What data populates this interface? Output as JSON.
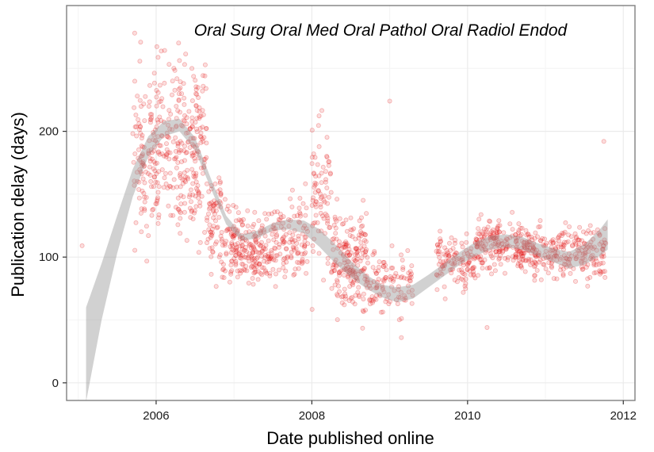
{
  "chart_data": {
    "type": "scatter",
    "title": "Oral Surg Oral Med Oral Pathol Oral Radiol Endod",
    "xlabel": "Date published online",
    "ylabel": "Publication delay (days)",
    "xlim": [
      2004.85,
      2012.15
    ],
    "ylim": [
      -14,
      300
    ],
    "x_ticks": [
      2006,
      2008,
      2010,
      2012
    ],
    "x_tick_labels": [
      "2006",
      "2008",
      "2010",
      "2012"
    ],
    "y_ticks": [
      0,
      100,
      200
    ],
    "y_tick_labels": [
      "0",
      "100",
      "200"
    ],
    "grid": true,
    "legend": "none",
    "point_color": "#e31a1c",
    "point_alpha": 0.15,
    "band_color": "#999999",
    "smooth_band": {
      "x": [
        2005.1,
        2005.3,
        2005.5,
        2005.7,
        2005.9,
        2006.1,
        2006.3,
        2006.5,
        2006.7,
        2006.9,
        2007.1,
        2007.3,
        2007.5,
        2007.7,
        2007.9,
        2008.1,
        2008.3,
        2008.5,
        2008.7,
        2008.9,
        2009.1,
        2009.3,
        2009.5,
        2009.7,
        2009.9,
        2010.1,
        2010.3,
        2010.5,
        2010.7,
        2010.9,
        2011.1,
        2011.3,
        2011.5,
        2011.7,
        2011.8
      ],
      "lower": [
        -15,
        50,
        103,
        148,
        180,
        196,
        200,
        185,
        155,
        126,
        113,
        115,
        121,
        122,
        119,
        108,
        95,
        84,
        75,
        68,
        64,
        67,
        76,
        85,
        94,
        101,
        106,
        108,
        106,
        101,
        96,
        91,
        94,
        101,
        106
      ],
      "upper": [
        60,
        95,
        133,
        170,
        196,
        208,
        210,
        195,
        163,
        133,
        118,
        121,
        127,
        130,
        129,
        122,
        110,
        97,
        86,
        78,
        76,
        78,
        86,
        95,
        104,
        112,
        117,
        118,
        116,
        111,
        107,
        104,
        110,
        122,
        130
      ]
    },
    "point_clusters": [
      {
        "x0": 2005.7,
        "x1": 2005.9,
        "y_center": 180,
        "y_spread": 55,
        "count": 70
      },
      {
        "x0": 2005.9,
        "x1": 2006.25,
        "y_center": 185,
        "y_spread": 55,
        "count": 130
      },
      {
        "x0": 2006.25,
        "x1": 2006.65,
        "y_center": 185,
        "y_spread": 60,
        "count": 190
      },
      {
        "x0": 2006.65,
        "x1": 2006.95,
        "y_center": 125,
        "y_spread": 35,
        "count": 90
      },
      {
        "x0": 2006.95,
        "x1": 2007.5,
        "y_center": 108,
        "y_spread": 22,
        "count": 200
      },
      {
        "x0": 2007.5,
        "x1": 2007.95,
        "y_center": 112,
        "y_spread": 28,
        "count": 120
      },
      {
        "x0": 2008.0,
        "x1": 2008.25,
        "y_center": 150,
        "y_spread": 50,
        "count": 80
      },
      {
        "x0": 2008.25,
        "x1": 2008.7,
        "y_center": 95,
        "y_spread": 35,
        "count": 190
      },
      {
        "x0": 2008.7,
        "x1": 2009.3,
        "y_center": 80,
        "y_spread": 20,
        "count": 110
      },
      {
        "x0": 2009.6,
        "x1": 2010.1,
        "y_center": 95,
        "y_spread": 16,
        "count": 120
      },
      {
        "x0": 2010.1,
        "x1": 2010.8,
        "y_center": 108,
        "y_spread": 16,
        "count": 220
      },
      {
        "x0": 2010.8,
        "x1": 2011.8,
        "y_center": 103,
        "y_spread": 17,
        "count": 240
      }
    ]
  }
}
